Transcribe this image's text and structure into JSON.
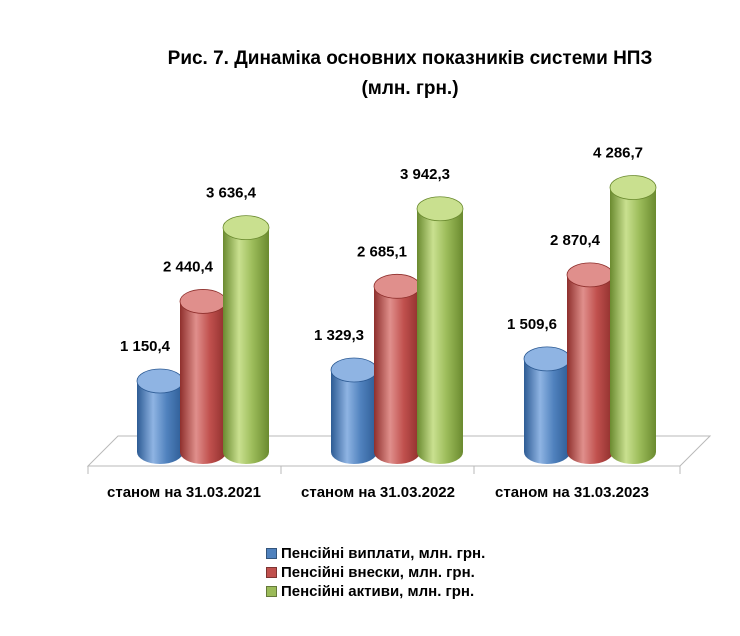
{
  "chart_data": {
    "type": "bar",
    "title_lines": [
      "Рис. 7. Динаміка основних показників системи НПЗ",
      "(млн. грн.)"
    ],
    "categories": [
      "станом на 31.03.2021",
      "станом на 31.03.2022",
      "станом на 31.03.2023"
    ],
    "series": [
      {
        "name": "Пенсійні виплати, млн. грн.",
        "color": "#4f81bd",
        "dark": "#2d5b94",
        "light": "#8fb4e3",
        "values": [
          1150.4,
          1329.3,
          1509.6
        ],
        "labels": [
          "1 150,4",
          "1 329,3",
          "1 509,6"
        ]
      },
      {
        "name": "Пенсійні внески, млн. грн.",
        "color": "#c0504d",
        "dark": "#8e2f2c",
        "light": "#e08f8c",
        "values": [
          2440.4,
          2685.1,
          2870.4
        ],
        "labels": [
          "2 440,4",
          "2 685,1",
          "2 870,4"
        ]
      },
      {
        "name": "Пенсійні активи, млн. грн.",
        "color": "#9bbb59",
        "dark": "#6a8a2f",
        "light": "#c9e08f",
        "values": [
          3636.4,
          3942.3,
          4286.7
        ],
        "labels": [
          "3 636,4",
          "3 942,3",
          "4 286,7"
        ]
      }
    ],
    "grid": false,
    "legend_position": "bottom"
  }
}
